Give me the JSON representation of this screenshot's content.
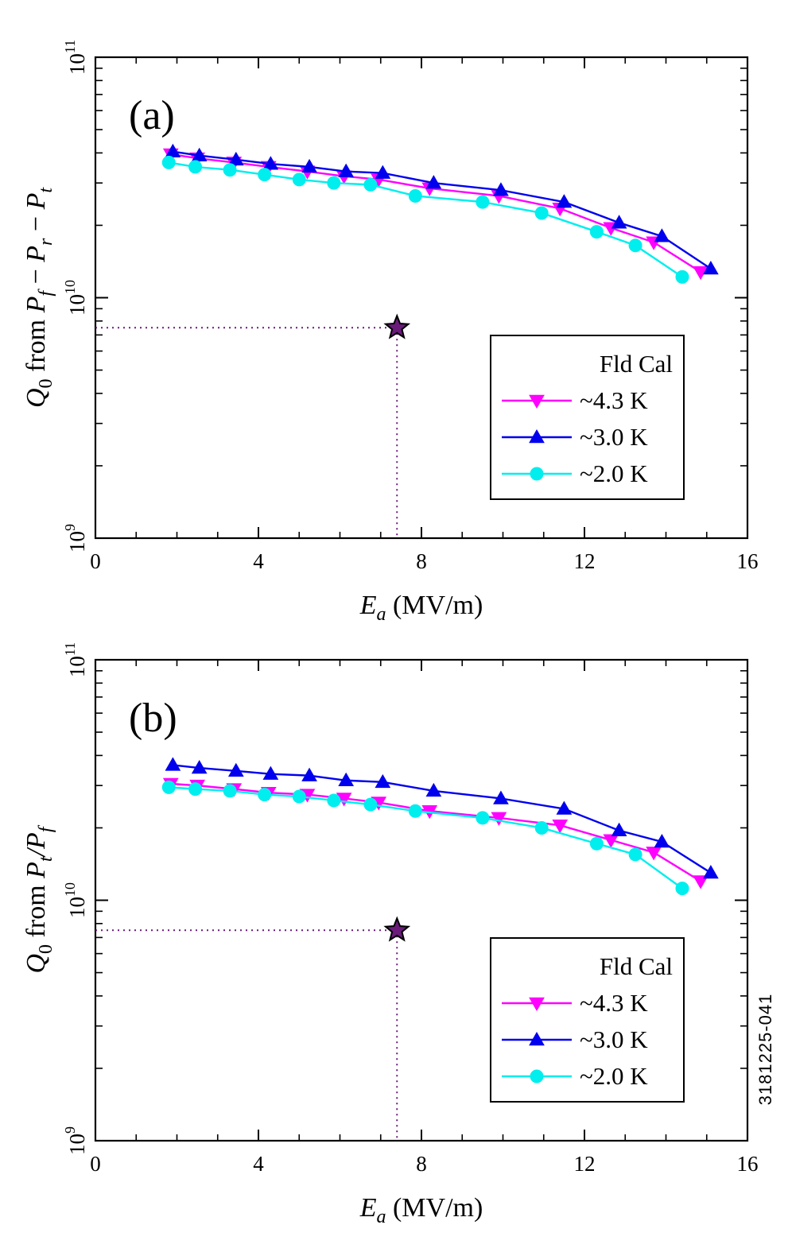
{
  "figure_code": "3181225-041",
  "chart_data": [
    {
      "type": "line",
      "panel_label": "(a)",
      "y_scale": "log",
      "ylim": [
        1000000000.0,
        100000000000.0
      ],
      "xlim": [
        0,
        16
      ],
      "x_ticks": [
        "0",
        "4",
        "8",
        "12",
        "16"
      ],
      "y_ticks": [
        {
          "base": "10",
          "exp": "9",
          "value": 1000000000.0
        },
        {
          "base": "10",
          "exp": "10",
          "value": 10000000000.0
        },
        {
          "base": "10",
          "exp": "11",
          "value": 100000000000.0
        }
      ],
      "xlabel": {
        "sym": "E",
        "sub": "a",
        "rest": " (MV/m)"
      },
      "ylabel": {
        "parts": [
          {
            "t": "Q",
            "i": true
          },
          {
            "t": "0",
            "s": true
          },
          {
            "t": " from "
          },
          {
            "t": "P",
            "i": true
          },
          {
            "t": "f",
            "s": true,
            "i": true
          },
          {
            "t": " − "
          },
          {
            "t": "P",
            "i": true
          },
          {
            "t": "r",
            "s": true,
            "i": true
          },
          {
            "t": " − "
          },
          {
            "t": "P",
            "i": true
          },
          {
            "t": "t",
            "s": true,
            "i": true
          }
        ]
      },
      "legend": {
        "title": "Fld Cal",
        "position": "lower-right"
      },
      "series": [
        {
          "name": "~4.3 K",
          "color": "#ff00ff",
          "marker": "triangle-down",
          "x": [
            1.85,
            2.5,
            3.4,
            4.25,
            5.2,
            6.1,
            6.95,
            8.2,
            9.9,
            11.4,
            12.65,
            13.7,
            14.85
          ],
          "y": [
            39500000000.0,
            38000000000.0,
            36500000000.0,
            35000000000.0,
            33500000000.0,
            32000000000.0,
            31000000000.0,
            28500000000.0,
            26500000000.0,
            23500000000.0,
            19500000000.0,
            17000000000.0,
            12800000000.0
          ]
        },
        {
          "name": "~3.0 K",
          "color": "#0000ee",
          "marker": "triangle-up",
          "x": [
            1.9,
            2.55,
            3.45,
            4.3,
            5.25,
            6.15,
            7.05,
            8.3,
            9.95,
            11.5,
            12.85,
            13.9,
            15.1
          ],
          "y": [
            40500000000.0,
            39000000000.0,
            37500000000.0,
            36000000000.0,
            35000000000.0,
            33500000000.0,
            33000000000.0,
            30000000000.0,
            28000000000.0,
            25000000000.0,
            20500000000.0,
            18000000000.0,
            13200000000.0
          ]
        },
        {
          "name": "~2.0 K",
          "color": "#00eeee",
          "marker": "circle",
          "x": [
            1.8,
            2.45,
            3.3,
            4.15,
            5.0,
            5.85,
            6.75,
            7.85,
            9.5,
            10.95,
            12.3,
            13.25,
            14.4
          ],
          "y": [
            36500000000.0,
            35000000000.0,
            34000000000.0,
            32500000000.0,
            31000000000.0,
            30000000000.0,
            29500000000.0,
            26500000000.0,
            25000000000.0,
            22500000000.0,
            18800000000.0,
            16500000000.0,
            12200000000.0
          ]
        }
      ],
      "star_point": {
        "x": 7.4,
        "y": 7500000000.0,
        "color": "#6a1b7a"
      }
    },
    {
      "type": "line",
      "panel_label": "(b)",
      "y_scale": "log",
      "ylim": [
        1000000000.0,
        100000000000.0
      ],
      "xlim": [
        0,
        16
      ],
      "x_ticks": [
        "0",
        "4",
        "8",
        "12",
        "16"
      ],
      "y_ticks": [
        {
          "base": "10",
          "exp": "9",
          "value": 1000000000.0
        },
        {
          "base": "10",
          "exp": "10",
          "value": 10000000000.0
        },
        {
          "base": "10",
          "exp": "11",
          "value": 100000000000.0
        }
      ],
      "xlabel": {
        "sym": "E",
        "sub": "a",
        "rest": " (MV/m)"
      },
      "ylabel": {
        "parts": [
          {
            "t": "Q",
            "i": true
          },
          {
            "t": "0",
            "s": true
          },
          {
            "t": " from "
          },
          {
            "t": "P",
            "i": true
          },
          {
            "t": "t",
            "s": true,
            "i": true
          },
          {
            "t": "/",
            "i": true
          },
          {
            "t": "P",
            "i": true
          },
          {
            "t": "f",
            "s": true,
            "i": true
          }
        ]
      },
      "legend": {
        "title": "Fld Cal",
        "position": "lower-right"
      },
      "series": [
        {
          "name": "~4.3 K",
          "color": "#ff00ff",
          "marker": "triangle-down",
          "x": [
            1.85,
            2.5,
            3.4,
            4.25,
            5.2,
            6.1,
            6.95,
            8.2,
            9.9,
            11.4,
            12.65,
            13.7,
            14.85
          ],
          "y": [
            30500000000.0,
            30000000000.0,
            29000000000.0,
            28000000000.0,
            27500000000.0,
            26500000000.0,
            25500000000.0,
            23500000000.0,
            22000000000.0,
            20500000000.0,
            17800000000.0,
            15800000000.0,
            12000000000.0
          ]
        },
        {
          "name": "~3.0 K",
          "color": "#0000ee",
          "marker": "triangle-up",
          "x": [
            1.9,
            2.55,
            3.45,
            4.3,
            5.25,
            6.15,
            7.05,
            8.3,
            9.95,
            11.5,
            12.85,
            13.9,
            15.1
          ],
          "y": [
            36500000000.0,
            35500000000.0,
            34500000000.0,
            33500000000.0,
            33000000000.0,
            31500000000.0,
            31000000000.0,
            28500000000.0,
            26500000000.0,
            24000000000.0,
            19500000000.0,
            17500000000.0,
            13000000000.0
          ]
        },
        {
          "name": "~2.0 K",
          "color": "#00eeee",
          "marker": "circle",
          "x": [
            1.8,
            2.45,
            3.3,
            4.15,
            5.0,
            5.85,
            6.75,
            7.85,
            9.5,
            10.95,
            12.3,
            13.25,
            14.4
          ],
          "y": [
            29500000000.0,
            29000000000.0,
            28500000000.0,
            27500000000.0,
            27000000000.0,
            26000000000.0,
            25000000000.0,
            23500000000.0,
            22000000000.0,
            20000000000.0,
            17200000000.0,
            15500000000.0,
            11200000000.0
          ]
        }
      ],
      "star_point": {
        "x": 7.4,
        "y": 7500000000.0,
        "color": "#6a1b7a"
      }
    }
  ]
}
